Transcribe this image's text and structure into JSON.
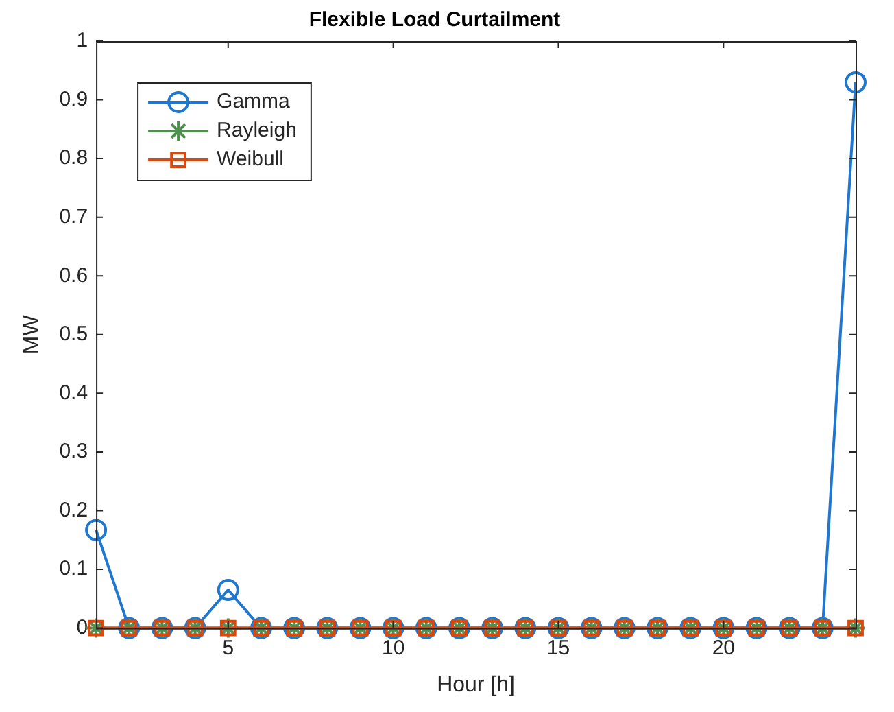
{
  "chart_data": {
    "type": "line",
    "title": "Flexible Load Curtailment",
    "xlabel": "Hour [h]",
    "ylabel": "MW",
    "x": [
      1,
      2,
      3,
      4,
      5,
      6,
      7,
      8,
      9,
      10,
      11,
      12,
      13,
      14,
      15,
      16,
      17,
      18,
      19,
      20,
      21,
      22,
      23,
      24
    ],
    "series": [
      {
        "name": "Gamma",
        "color": "#1f77d0",
        "marker": "circle",
        "values": [
          0.167,
          0,
          0,
          0,
          0.065,
          0,
          0,
          0,
          0,
          0,
          0,
          0,
          0,
          0,
          0,
          0,
          0,
          0,
          0,
          0,
          0,
          0,
          0,
          0.93
        ]
      },
      {
        "name": "Rayleigh",
        "color": "#4f8f4f",
        "marker": "cross",
        "values": [
          0,
          0,
          0,
          0,
          0,
          0,
          0,
          0,
          0,
          0,
          0,
          0,
          0,
          0,
          0,
          0,
          0,
          0,
          0,
          0,
          0,
          0,
          0,
          0
        ]
      },
      {
        "name": "Weibull",
        "color": "#d9480f",
        "marker": "square",
        "values": [
          0,
          0,
          0,
          0,
          0,
          0,
          0,
          0,
          0,
          0,
          0,
          0,
          0,
          0,
          0,
          0,
          0,
          0,
          0,
          0,
          0,
          0,
          0,
          0
        ]
      }
    ],
    "xlim": [
      1,
      24
    ],
    "xticks": [
      5,
      10,
      15,
      20
    ],
    "ylim": [
      0,
      1
    ],
    "yticks": [
      0,
      0.1,
      0.2,
      0.3,
      0.4,
      0.5,
      0.6,
      0.7,
      0.8,
      0.9,
      1
    ],
    "legend": "top left",
    "grid": false,
    "line_style": "solid"
  }
}
